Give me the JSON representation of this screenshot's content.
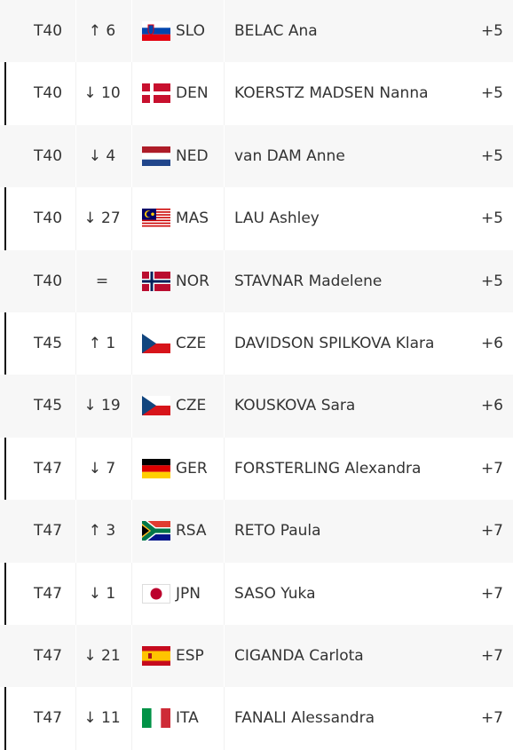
{
  "rows": [
    {
      "position": "T40",
      "move": "↑ 6",
      "country": "SLO",
      "name": "BELAC Ana",
      "score": "+5"
    },
    {
      "position": "T40",
      "move": "↓ 10",
      "country": "DEN",
      "name": "KOERSTZ MADSEN Nanna",
      "score": "+5"
    },
    {
      "position": "T40",
      "move": "↓ 4",
      "country": "NED",
      "name": "van DAM Anne",
      "score": "+5"
    },
    {
      "position": "T40",
      "move": "↓ 27",
      "country": "MAS",
      "name": "LAU Ashley",
      "score": "+5"
    },
    {
      "position": "T40",
      "move": "=",
      "country": "NOR",
      "name": "STAVNAR Madelene",
      "score": "+5"
    },
    {
      "position": "T45",
      "move": "↑ 1",
      "country": "CZE",
      "name": "DAVIDSON SPILKOVA Klara",
      "score": "+6"
    },
    {
      "position": "T45",
      "move": "↓ 19",
      "country": "CZE",
      "name": "KOUSKOVA Sara",
      "score": "+6"
    },
    {
      "position": "T47",
      "move": "↓ 7",
      "country": "GER",
      "name": "FORSTERLING Alexandra",
      "score": "+7"
    },
    {
      "position": "T47",
      "move": "↑ 3",
      "country": "RSA",
      "name": "RETO Paula",
      "score": "+7"
    },
    {
      "position": "T47",
      "move": "↓ 1",
      "country": "JPN",
      "name": "SASO Yuka",
      "score": "+7"
    },
    {
      "position": "T47",
      "move": "↓ 21",
      "country": "ESP",
      "name": "CIGANDA Carlota",
      "score": "+7"
    },
    {
      "position": "T47",
      "move": "↓ 11",
      "country": "ITA",
      "name": "FANALI Alessandra",
      "score": "+7"
    }
  ]
}
